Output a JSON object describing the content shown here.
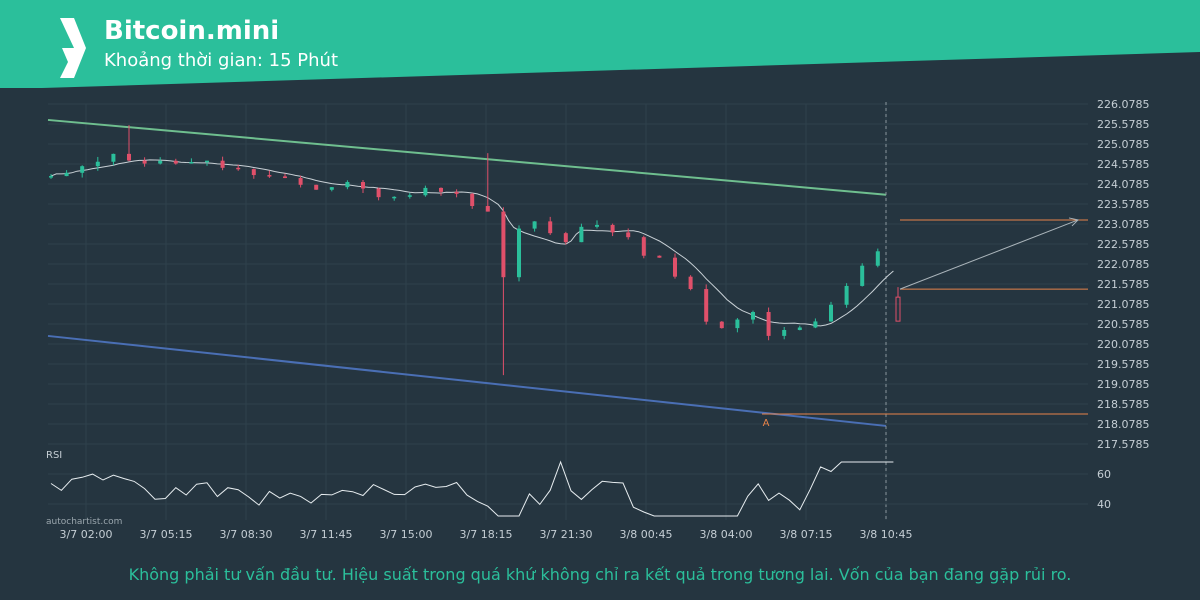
{
  "header": {
    "title": "Bitcoin.mini",
    "subtitle": "Khoảng thời gian: 15 Phút",
    "band_color": "#2bbf9b"
  },
  "footer": {
    "disclaimer": "Không phải tư vấn đầu tư. Hiệu suất trong quá khứ không chỉ ra kết quả trong tương lai. Vốn của bạn đang gặp rủi ro."
  },
  "chart_data": {
    "type": "candlestick",
    "symbol": "Bitcoin.mini",
    "interval": "15 Phút",
    "watermark": "autochartist.com",
    "y_ticks": [
      "226.0785",
      "225.5785",
      "225.0785",
      "224.5785",
      "224.0785",
      "223.5785",
      "223.0785",
      "222.5785",
      "222.0785",
      "221.5785",
      "221.0785",
      "220.5785",
      "220.0785",
      "219.5785",
      "219.0785",
      "218.5785",
      "218.0785",
      "217.5785"
    ],
    "ylim": [
      217.5785,
      226.0785
    ],
    "x_ticks": [
      "3/7 02:00",
      "3/7 05:15",
      "3/7 08:30",
      "3/7 11:45",
      "3/7 15:00",
      "3/7 18:15",
      "3/7 21:30",
      "3/8 00:45",
      "3/8 04:00",
      "3/8 07:15",
      "3/8 10:45"
    ],
    "rsi": {
      "label": "RSI",
      "ticks": [
        "60",
        "40"
      ]
    },
    "channel": {
      "upper": {
        "start": 225.68,
        "end": 223.81,
        "color": "#6fbf8f"
      },
      "lower": {
        "start": 220.28,
        "end": 218.03,
        "color": "#4a6fb5"
      }
    },
    "levels": [
      {
        "name": "resistance",
        "value": 221.45,
        "color": "#e8844a"
      },
      {
        "name": "support",
        "value": 218.33,
        "color": "#e8844a"
      },
      {
        "name": "target",
        "value": 223.18,
        "color": "#e8844a"
      }
    ],
    "point_label": "A",
    "candle_colors": {
      "up": "#2bbf9b",
      "down": "#e0506a"
    },
    "colors": {
      "background": "#253540",
      "grid": "#2f414c",
      "ma": "#c9d1d6",
      "projection": "#aab4ba",
      "accent": "#2bbf9b"
    }
  }
}
